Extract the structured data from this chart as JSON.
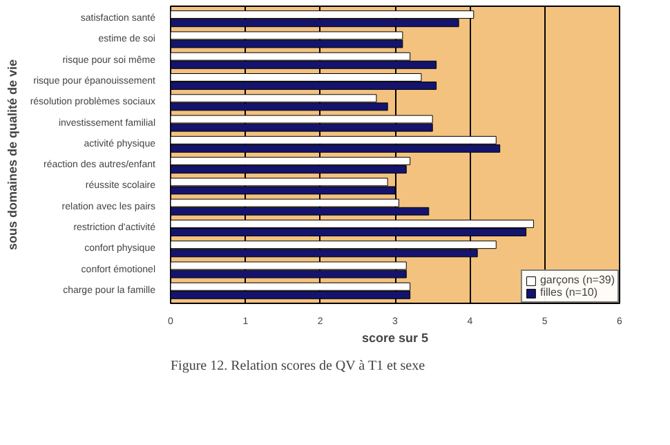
{
  "chart_data": {
    "type": "bar",
    "orientation": "horizontal",
    "xlabel": "score sur 5",
    "ylabel": "sous domaines de qualité de vie",
    "categories": [
      "satisfaction santé",
      "estime de soi",
      "risque pour soi même",
      "risque pour épanouissement",
      "résolution problèmes sociaux",
      "investissement familial",
      "activité physique",
      "réaction des autres/enfant",
      "réussite scolaire",
      "relation avec les pairs",
      "restriction d'activité",
      "confort physique",
      "confort émotionel",
      "charge pour la famille"
    ],
    "series": [
      {
        "name": "garçons (n=39)",
        "color": "#ffffff",
        "values": [
          4.05,
          3.1,
          3.2,
          3.35,
          2.75,
          3.5,
          4.35,
          3.2,
          2.9,
          3.05,
          4.85,
          4.35,
          3.15,
          3.2
        ]
      },
      {
        "name": "filles (n=10)",
        "color": "#14146e",
        "values": [
          3.85,
          3.1,
          3.55,
          3.55,
          2.9,
          3.5,
          4.4,
          3.15,
          3.0,
          3.45,
          4.75,
          4.1,
          3.15,
          3.2
        ]
      }
    ],
    "xlim": [
      0,
      6
    ],
    "xticks": [
      0,
      1,
      2,
      3,
      4,
      5,
      6
    ],
    "grid": "x",
    "legend": "bottom right",
    "annotations": [
      "Figure 12.  Relation scores de QV à T1 et sexe"
    ]
  }
}
